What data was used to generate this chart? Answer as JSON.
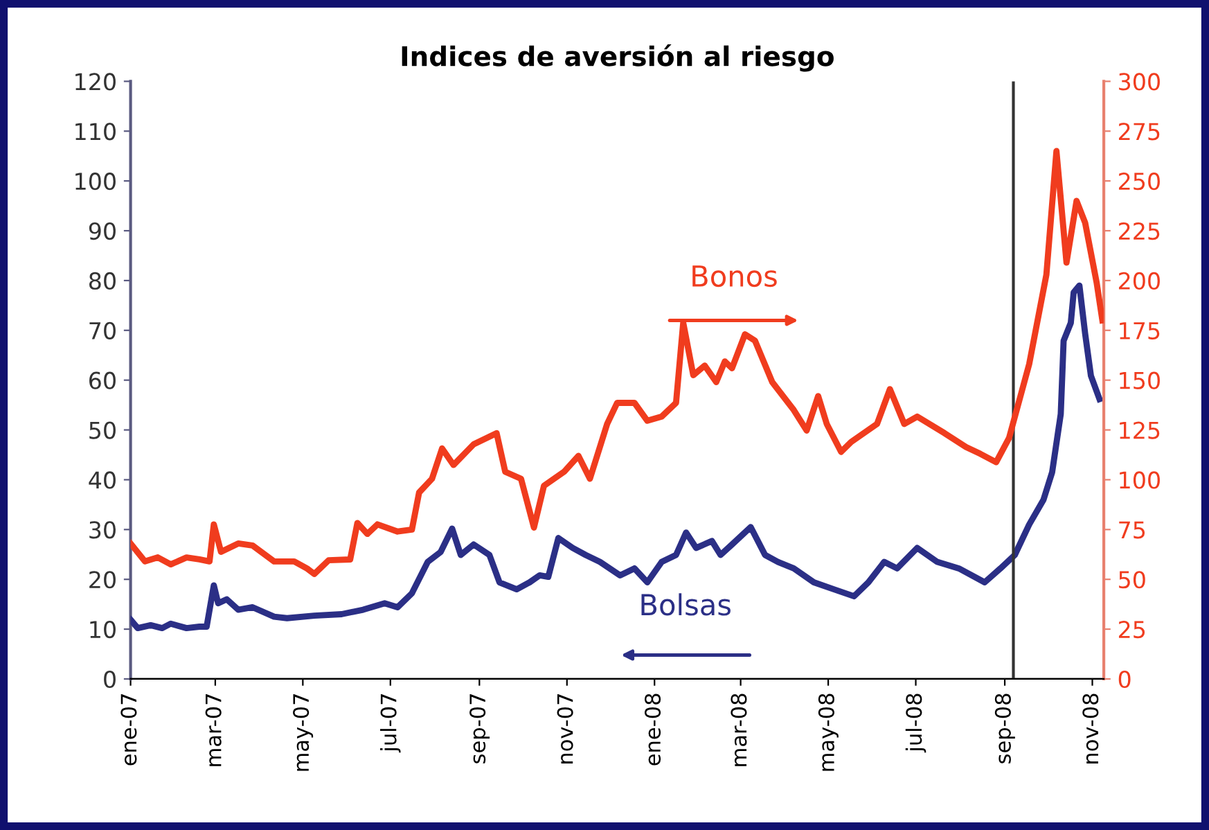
{
  "chart_data": {
    "type": "line",
    "title": "Indices de aversión al riesgo",
    "xlim": [
      "2007-01-01",
      "2008-11-09"
    ],
    "xticks": [
      {
        "value": "2007-01-01",
        "label": "ene-07"
      },
      {
        "value": "2007-03-01",
        "label": "mar-07"
      },
      {
        "value": "2007-05-01",
        "label": "may-07"
      },
      {
        "value": "2007-07-01",
        "label": "jul-07"
      },
      {
        "value": "2007-09-01",
        "label": "sep-07"
      },
      {
        "value": "2007-11-01",
        "label": "nov-07"
      },
      {
        "value": "2008-01-01",
        "label": "ene-08"
      },
      {
        "value": "2008-03-01",
        "label": "mar-08"
      },
      {
        "value": "2008-05-01",
        "label": "may-08"
      },
      {
        "value": "2008-07-01",
        "label": "jul-08"
      },
      {
        "value": "2008-09-01",
        "label": "sep-08"
      },
      {
        "value": "2008-11-01",
        "label": "nov-08"
      }
    ],
    "ylim": [
      0,
      120
    ],
    "yticks": [
      0,
      10,
      20,
      30,
      40,
      50,
      60,
      70,
      80,
      90,
      100,
      110,
      120
    ],
    "y2lim": [
      0,
      300
    ],
    "y2ticks": [
      0,
      25,
      50,
      75,
      100,
      125,
      150,
      175,
      200,
      225,
      250,
      275,
      300
    ],
    "grid": false,
    "legend": false,
    "ref_lines": [
      {
        "axis": "x",
        "value": "2008-09-07",
        "color": "#333333"
      }
    ],
    "series": [
      {
        "name": "Bonos",
        "color": "#f03c1e",
        "axis": "y2",
        "x": [
          "2007-01-01",
          "2007-01-11",
          "2007-01-20",
          "2007-01-29",
          "2007-02-09",
          "2007-02-18",
          "2007-02-25",
          "2007-02-28",
          "2007-03-05",
          "2007-03-17",
          "2007-03-27",
          "2007-04-11",
          "2007-04-25",
          "2007-05-04",
          "2007-05-09",
          "2007-05-19",
          "2007-06-03",
          "2007-06-08",
          "2007-06-15",
          "2007-06-22",
          "2007-07-06",
          "2007-07-16",
          "2007-07-21",
          "2007-07-30",
          "2007-08-06",
          "2007-08-14",
          "2007-08-28",
          "2007-09-13",
          "2007-09-19",
          "2007-09-30",
          "2007-10-09",
          "2007-10-16",
          "2007-10-30",
          "2007-11-09",
          "2007-11-17",
          "2007-11-29",
          "2007-12-06",
          "2007-12-18",
          "2007-12-27",
          "2008-01-06",
          "2008-01-16",
          "2008-01-21",
          "2008-01-28",
          "2008-02-05",
          "2008-02-13",
          "2008-02-19",
          "2008-02-24",
          "2008-03-04",
          "2008-03-11",
          "2008-03-23",
          "2008-04-07",
          "2008-04-16",
          "2008-04-24",
          "2008-04-30",
          "2008-05-10",
          "2008-05-17",
          "2008-06-04",
          "2008-06-13",
          "2008-06-23",
          "2008-07-02",
          "2008-07-21",
          "2008-08-05",
          "2008-08-15",
          "2008-08-26",
          "2008-09-04",
          "2008-09-18",
          "2008-09-30",
          "2008-10-07",
          "2008-10-14",
          "2008-10-21",
          "2008-10-27",
          "2008-11-04",
          "2008-11-08"
        ],
        "values": [
          68,
          59,
          61,
          57.5,
          61,
          60,
          59,
          77.6,
          63.8,
          68,
          67,
          59,
          59,
          55.4,
          52.7,
          59.6,
          60,
          78.3,
          72.8,
          77.6,
          74,
          75,
          93.6,
          100.5,
          115.7,
          107.4,
          117.8,
          123.4,
          104,
          100.5,
          76,
          97,
          104,
          112,
          100.5,
          128,
          138.6,
          138.6,
          129.6,
          131.7,
          138.6,
          178.8,
          152.5,
          157.3,
          149,
          159.4,
          156,
          173,
          169.8,
          149,
          135,
          124.7,
          142,
          128,
          114,
          119,
          128,
          145.5,
          128,
          131.7,
          123.4,
          116.4,
          113,
          108.8,
          121,
          158,
          203,
          265,
          209,
          240,
          229,
          199,
          180
        ]
      },
      {
        "name": "Bolsas",
        "color": "#2b2f86",
        "axis": "y",
        "x": [
          "2007-01-01",
          "2007-01-06",
          "2007-01-15",
          "2007-01-23",
          "2007-01-29",
          "2007-02-09",
          "2007-02-18",
          "2007-02-23",
          "2007-02-28",
          "2007-03-03",
          "2007-03-09",
          "2007-03-17",
          "2007-03-27",
          "2007-04-11",
          "2007-04-20",
          "2007-05-09",
          "2007-05-28",
          "2007-06-12",
          "2007-06-27",
          "2007-07-06",
          "2007-07-16",
          "2007-07-27",
          "2007-08-05",
          "2007-08-13",
          "2007-08-19",
          "2007-08-28",
          "2007-09-08",
          "2007-09-15",
          "2007-09-27",
          "2007-10-06",
          "2007-10-13",
          "2007-10-19",
          "2007-10-26",
          "2007-11-05",
          "2007-11-14",
          "2007-11-24",
          "2007-12-08",
          "2007-12-18",
          "2007-12-27",
          "2008-01-06",
          "2008-01-16",
          "2008-01-23",
          "2008-01-30",
          "2008-02-10",
          "2008-02-16",
          "2008-02-24",
          "2008-03-08",
          "2008-03-18",
          "2008-03-27",
          "2008-04-07",
          "2008-04-21",
          "2008-05-05",
          "2008-05-19",
          "2008-05-29",
          "2008-06-09",
          "2008-06-18",
          "2008-07-02",
          "2008-07-16",
          "2008-07-31",
          "2008-08-18",
          "2008-08-29",
          "2008-09-08",
          "2008-09-18",
          "2008-09-28",
          "2008-10-04",
          "2008-10-10",
          "2008-10-12",
          "2008-10-17",
          "2008-10-19",
          "2008-10-23",
          "2008-10-27",
          "2008-10-31",
          "2008-11-06"
        ],
        "values": [
          11.9,
          10.2,
          10.8,
          10.2,
          11.1,
          10.2,
          10.5,
          10.5,
          18.8,
          15.2,
          16,
          13.9,
          14.4,
          12.5,
          12.2,
          12.7,
          13,
          13.9,
          15.2,
          14.4,
          17.2,
          23.5,
          25.5,
          30.2,
          24.9,
          27,
          24.9,
          19.4,
          18,
          19.4,
          20.8,
          20.5,
          28.3,
          26.3,
          24.9,
          23.5,
          20.8,
          22.2,
          19.4,
          23.5,
          24.9,
          29.4,
          26.3,
          27.7,
          24.9,
          27,
          30.5,
          24.9,
          23.5,
          22.2,
          19.4,
          18,
          16.6,
          19.4,
          23.5,
          22.2,
          26.3,
          23.5,
          22.2,
          19.4,
          22.2,
          24.9,
          31,
          36,
          41.5,
          53.2,
          67.9,
          71.5,
          77.6,
          79,
          69.3,
          60.9,
          56.2
        ]
      }
    ]
  }
}
